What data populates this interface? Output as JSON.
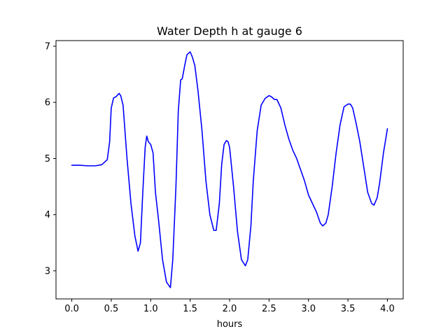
{
  "chart_data": {
    "type": "line",
    "title": "Water Depth h at gauge 6",
    "xlabel": "hours",
    "ylabel": "",
    "xlim": [
      -0.2,
      4.2
    ],
    "ylim": [
      2.5,
      7.1
    ],
    "xticks": [
      0.0,
      0.5,
      1.0,
      1.5,
      2.0,
      2.5,
      3.0,
      3.5,
      4.0
    ],
    "xtick_labels": [
      "0.0",
      "0.5",
      "1.0",
      "1.5",
      "2.0",
      "2.5",
      "3.0",
      "3.5",
      "4.0"
    ],
    "yticks": [
      3,
      4,
      5,
      6,
      7
    ],
    "ytick_labels": [
      "3",
      "4",
      "5",
      "6",
      "7"
    ],
    "grid": false,
    "series": [
      {
        "color": "#0000ff",
        "x": [
          0.0,
          0.1,
          0.2,
          0.3,
          0.38,
          0.45,
          0.48,
          0.5,
          0.53,
          0.56,
          0.6,
          0.62,
          0.65,
          0.7,
          0.75,
          0.8,
          0.84,
          0.87,
          0.9,
          0.93,
          0.95,
          0.97,
          1.0,
          1.03,
          1.06,
          1.1,
          1.15,
          1.2,
          1.25,
          1.28,
          1.32,
          1.35,
          1.38,
          1.4,
          1.43,
          1.46,
          1.5,
          1.53,
          1.56,
          1.6,
          1.65,
          1.7,
          1.75,
          1.8,
          1.83,
          1.87,
          1.9,
          1.93,
          1.96,
          1.98,
          2.0,
          2.05,
          2.1,
          2.15,
          2.2,
          2.23,
          2.27,
          2.3,
          2.35,
          2.4,
          2.45,
          2.5,
          2.53,
          2.57,
          2.6,
          2.65,
          2.7,
          2.75,
          2.8,
          2.85,
          2.9,
          2.95,
          3.0,
          3.05,
          3.1,
          3.15,
          3.18,
          3.22,
          3.25,
          3.3,
          3.35,
          3.4,
          3.45,
          3.5,
          3.53,
          3.56,
          3.6,
          3.65,
          3.7,
          3.75,
          3.8,
          3.83,
          3.87,
          3.9,
          3.95,
          4.0
        ],
        "y": [
          4.88,
          4.88,
          4.87,
          4.87,
          4.89,
          4.98,
          5.3,
          5.9,
          6.08,
          6.1,
          6.16,
          6.12,
          5.95,
          5.0,
          4.2,
          3.62,
          3.35,
          3.5,
          4.4,
          5.2,
          5.4,
          5.3,
          5.25,
          5.1,
          4.4,
          3.9,
          3.2,
          2.8,
          2.7,
          3.2,
          4.5,
          5.85,
          6.4,
          6.42,
          6.65,
          6.85,
          6.9,
          6.8,
          6.65,
          6.2,
          5.5,
          4.6,
          4.0,
          3.72,
          3.72,
          4.2,
          4.9,
          5.25,
          5.32,
          5.3,
          5.2,
          4.5,
          3.7,
          3.2,
          3.09,
          3.2,
          3.8,
          4.6,
          5.5,
          5.95,
          6.07,
          6.12,
          6.1,
          6.05,
          6.05,
          5.9,
          5.6,
          5.35,
          5.15,
          5.0,
          4.8,
          4.6,
          4.35,
          4.2,
          4.05,
          3.85,
          3.8,
          3.85,
          4.0,
          4.5,
          5.1,
          5.6,
          5.92,
          5.97,
          5.97,
          5.9,
          5.65,
          5.3,
          4.85,
          4.4,
          4.2,
          4.17,
          4.3,
          4.55,
          5.1,
          5.53
        ]
      }
    ]
  }
}
